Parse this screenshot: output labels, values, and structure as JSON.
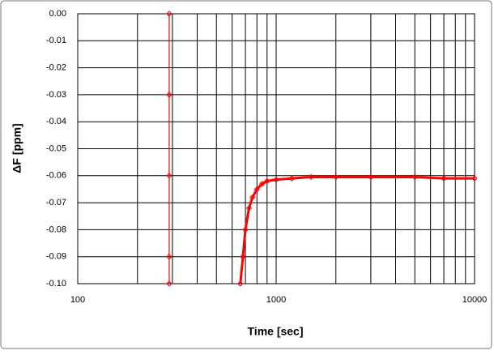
{
  "chart_data": {
    "type": "line",
    "x_label": "Time [sec]",
    "y_label": "ΔF [ppm]",
    "xlim": [
      100,
      10000
    ],
    "xticks": [
      100,
      1000,
      10000
    ],
    "x_log": true,
    "minor_grid": true,
    "ylim": [
      -0.1,
      0
    ],
    "yticks": [
      {
        "value": 0,
        "label": "0.00"
      },
      -0.01,
      -0.02,
      -0.03,
      -0.04,
      -0.05,
      -0.06,
      -0.07,
      -0.08,
      -0.09,
      {
        "value": -0.1,
        "label": "-0.10"
      }
    ],
    "grid": true,
    "series": [
      {
        "color": "#ff0000",
        "x": [
          289,
          289,
          289,
          289,
          289
        ],
        "values": [
          0,
          -0.03,
          -0.06,
          -0.09,
          -0.1
        ]
      },
      {
        "color": "#ff0000",
        "x": [
          660,
          680,
          700,
          730,
          760,
          800,
          850,
          900,
          1000,
          1200,
          1500,
          2000,
          3000,
          5000,
          7000,
          10000
        ],
        "values": [
          -0.1,
          -0.09,
          -0.08,
          -0.072,
          -0.068,
          -0.065,
          -0.063,
          -0.062,
          -0.0615,
          -0.061,
          -0.0605,
          -0.0605,
          -0.0605,
          -0.0605,
          -0.061,
          -0.061
        ]
      }
    ]
  }
}
